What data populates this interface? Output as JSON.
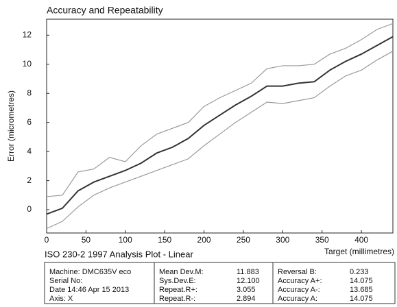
{
  "chart_data": {
    "type": "line",
    "title": "Accuracy and Repeatability",
    "x_label": "Target  (millimetres)",
    "y_label": "Error  (micrometres)",
    "x": [
      0,
      20,
      40,
      60,
      80,
      100,
      120,
      140,
      160,
      180,
      200,
      220,
      240,
      260,
      280,
      300,
      320,
      340,
      360,
      380,
      400,
      420,
      440
    ],
    "series": [
      {
        "color": "#999999",
        "values": [
          0.9,
          1.0,
          2.6,
          2.8,
          3.6,
          3.3,
          4.4,
          5.2,
          5.6,
          6.0,
          7.1,
          7.7,
          8.2,
          8.7,
          9.7,
          9.9,
          9.9,
          10.0,
          10.7,
          11.1,
          11.7,
          12.4,
          12.8
        ]
      },
      {
        "color": "#999999",
        "values": [
          -1.3,
          -0.8,
          0.2,
          1.0,
          1.5,
          1.9,
          2.3,
          2.7,
          3.1,
          3.5,
          4.4,
          5.2,
          6.0,
          6.7,
          7.4,
          7.3,
          7.5,
          7.7,
          8.5,
          9.2,
          9.6,
          10.3,
          10.9
        ]
      },
      {
        "color": "#333333",
        "values": [
          -0.3,
          0.1,
          1.3,
          1.9,
          2.3,
          2.7,
          3.2,
          3.9,
          4.3,
          4.9,
          5.8,
          6.5,
          7.2,
          7.8,
          8.5,
          8.5,
          8.7,
          8.8,
          9.6,
          10.2,
          10.7,
          11.3,
          11.9
        ]
      }
    ],
    "xlim": [
      0,
      440
    ],
    "xticks": [
      0,
      50,
      100,
      150,
      200,
      250,
      300,
      350,
      400
    ],
    "ylim": [
      -1.6,
      13.1
    ],
    "yticks": [
      0,
      2,
      4,
      6,
      8,
      10,
      12
    ],
    "grid": false
  },
  "subtitle": "ISO 230-2  1997  Analysis Plot - Linear",
  "info_table": {
    "machine": [
      "Machine: DMC635V eco",
      "Serial No:",
      "Date 14:46 Apr 15 2013",
      "Axis: X"
    ],
    "statistics": [
      [
        "Mean Dev.M:",
        "11.883"
      ],
      [
        "Sys.Dev.E:",
        "12.100"
      ],
      [
        "Repeat.R+:",
        "3.055"
      ],
      [
        "Repeat.R-:",
        "2.894"
      ]
    ],
    "accuracy": [
      [
        "Reversal B:",
        "0.233"
      ],
      [
        "Accuracy A+:",
        "14.075"
      ],
      [
        "Accuracy A-:",
        "13.685"
      ],
      [
        "Accuracy A:",
        "14.075"
      ]
    ]
  }
}
